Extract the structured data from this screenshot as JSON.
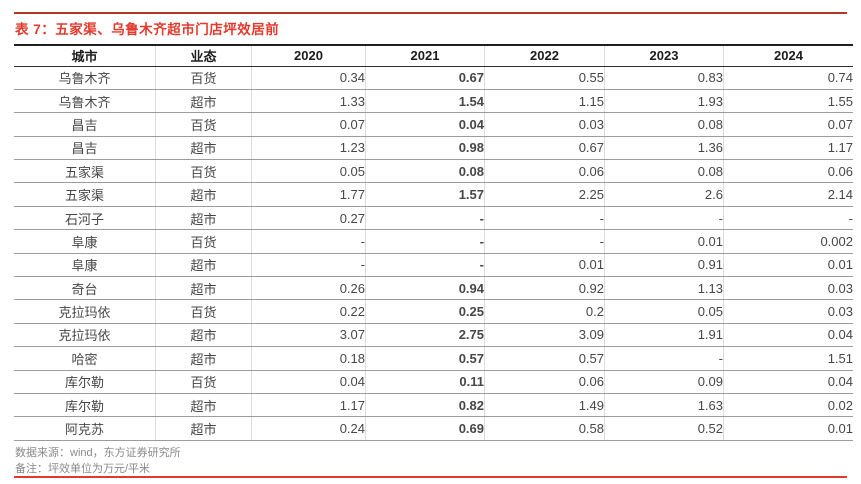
{
  "title": "表 7：五家渠、乌鲁木齐超市门店坪效居前",
  "colors": {
    "title_red": "#e23a2c",
    "top_rule_red": "#b1372a",
    "bottom_rule_red": "#e03a2c",
    "header_text": "#1c1c1c",
    "cell_text": "#474747",
    "row_line": "#9c9c9c"
  },
  "table": {
    "columns": [
      "城市",
      "业态",
      "2020",
      "2021",
      "2022",
      "2023",
      "2024"
    ],
    "bold_column": "2021",
    "rows": [
      [
        "乌鲁木齐",
        "百货",
        "0.34",
        "0.67",
        "0.55",
        "0.83",
        "0.74"
      ],
      [
        "乌鲁木齐",
        "超市",
        "1.33",
        "1.54",
        "1.15",
        "1.93",
        "1.55"
      ],
      [
        "昌吉",
        "百货",
        "0.07",
        "0.04",
        "0.03",
        "0.08",
        "0.07"
      ],
      [
        "昌吉",
        "超市",
        "1.23",
        "0.98",
        "0.67",
        "1.36",
        "1.17"
      ],
      [
        "五家渠",
        "百货",
        "0.05",
        "0.08",
        "0.06",
        "0.08",
        "0.06"
      ],
      [
        "五家渠",
        "超市",
        "1.77",
        "1.57",
        "2.25",
        "2.6",
        "2.14"
      ],
      [
        "石河子",
        "超市",
        "0.27",
        "-",
        "-",
        "-",
        "-"
      ],
      [
        "阜康",
        "百货",
        "-",
        "-",
        "-",
        "0.01",
        "0.002"
      ],
      [
        "阜康",
        "超市",
        "-",
        "-",
        "0.01",
        "0.91",
        "0.01"
      ],
      [
        "奇台",
        "超市",
        "0.26",
        "0.94",
        "0.92",
        "1.13",
        "0.03"
      ],
      [
        "克拉玛依",
        "百货",
        "0.22",
        "0.25",
        "0.2",
        "0.05",
        "0.03"
      ],
      [
        "克拉玛依",
        "超市",
        "3.07",
        "2.75",
        "3.09",
        "1.91",
        "0.04"
      ],
      [
        "哈密",
        "超市",
        "0.18",
        "0.57",
        "0.57",
        "-",
        "1.51"
      ],
      [
        "库尔勒",
        "百货",
        "0.04",
        "0.11",
        "0.06",
        "0.09",
        "0.04"
      ],
      [
        "库尔勒",
        "超市",
        "1.17",
        "0.82",
        "1.49",
        "1.63",
        "0.02"
      ],
      [
        "阿克苏",
        "超市",
        "0.24",
        "0.69",
        "0.58",
        "0.52",
        "0.01"
      ]
    ]
  },
  "footer": {
    "source": "数据来源：wind，东方证券研究所",
    "note": "备注：坪效单位为万元/平米"
  }
}
